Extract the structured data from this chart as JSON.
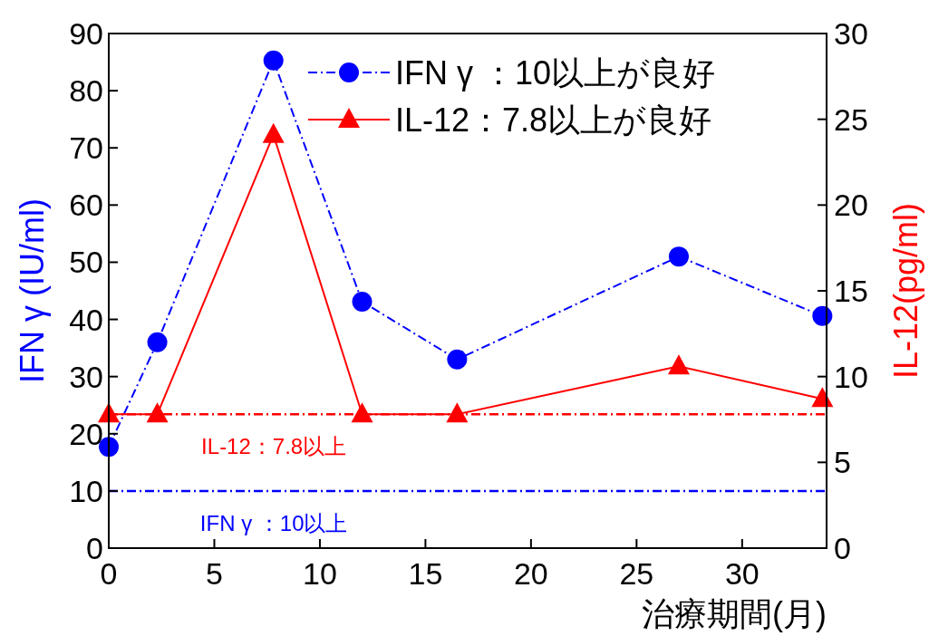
{
  "chart_data": {
    "type": "line",
    "xlabel": "治療期間(月)",
    "ylabel": "IFN γ (IU/ml)",
    "y2label": "IL-12(pg/ml)",
    "x": [
      0,
      2.3,
      7.8,
      12,
      16.5,
      27,
      33.8
    ],
    "series": [
      {
        "name": "IFN γ ：10以上が良好",
        "color": "#0000ff",
        "values": [
          17.7,
          36,
          85.3,
          43.1,
          33,
          51,
          40.6
        ],
        "marker": "circle",
        "line_style": "dashed"
      },
      {
        "name": "IL-12：7.8以上が良好",
        "color": "#ff0000",
        "values": [
          7.8,
          7.8,
          24.1,
          7.8,
          7.8,
          10.6,
          8.7
        ],
        "marker": "triangle",
        "line_style": "solid",
        "axis": "y2"
      }
    ],
    "xlim": [
      0,
      34
    ],
    "xticks": [
      0,
      5,
      10,
      15,
      20,
      25,
      30
    ],
    "ylim": [
      0,
      90
    ],
    "yticks": [
      0,
      10,
      20,
      30,
      40,
      50,
      60,
      70,
      80,
      90
    ],
    "y2lim": [
      0,
      30
    ],
    "y2ticks": [
      0,
      5,
      10,
      15,
      20,
      25,
      30
    ],
    "ref_lines": [
      {
        "axis": "y2",
        "value": 7.8,
        "label": "IL-12：7.8以上",
        "color": "#ff0000",
        "line_style": "dashed"
      },
      {
        "axis": "y",
        "value": 10,
        "label": "IFN γ ：10以上",
        "color": "#0000ff",
        "line_style": "dashed"
      }
    ],
    "grid": false,
    "legend": "top right"
  }
}
